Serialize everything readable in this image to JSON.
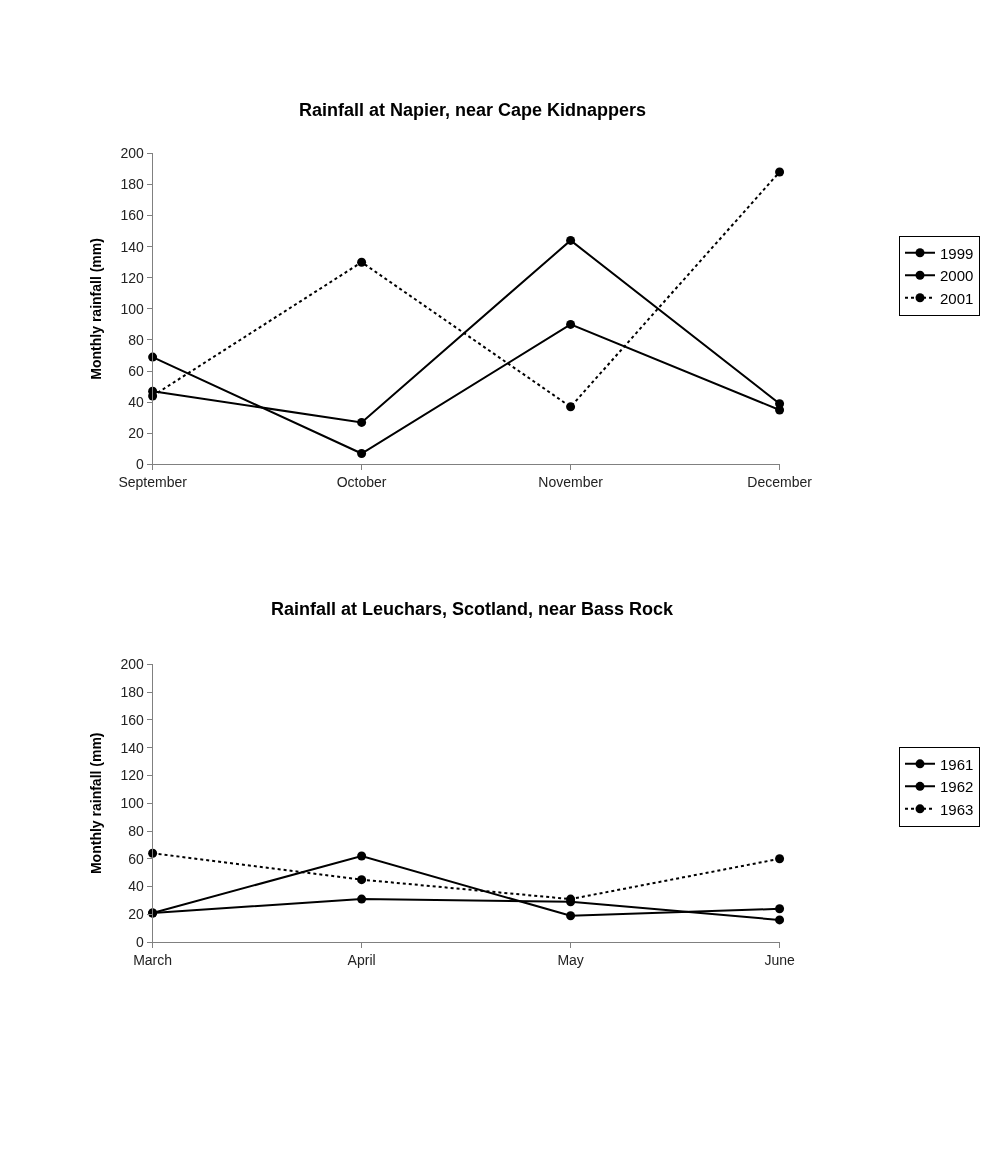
{
  "chart_data": [
    {
      "type": "line",
      "title": "Rainfall at Napier, near Cape Kidnappers",
      "ylabel": "Monthly rainfall (mm)",
      "categories": [
        "September",
        "October",
        "November",
        "December"
      ],
      "series": [
        {
          "name": "1999",
          "color": "#000000",
          "line_style": "solid",
          "values": [
            47,
            27,
            144,
            39
          ]
        },
        {
          "name": "2000",
          "color": "#000000",
          "line_style": "solid",
          "values": [
            69,
            7,
            90,
            35
          ]
        },
        {
          "name": "2001",
          "color": "#000000",
          "line_style": "dotted",
          "values": [
            44,
            130,
            37,
            188
          ]
        }
      ],
      "ylim": [
        0,
        200
      ],
      "yticks": [
        0,
        20,
        40,
        60,
        80,
        100,
        120,
        140,
        160,
        180,
        200
      ],
      "legend": "right",
      "marker": "circle"
    },
    {
      "type": "line",
      "title": "Rainfall at Leuchars, Scotland, near Bass Rock",
      "ylabel": "Monthly rainfall (mm)",
      "categories": [
        "March",
        "April",
        "May",
        "June"
      ],
      "series": [
        {
          "name": "1961",
          "color": "#000000",
          "line_style": "solid",
          "values": [
            21,
            62,
            19,
            24
          ]
        },
        {
          "name": "1962",
          "color": "#000000",
          "line_style": "solid",
          "values": [
            21,
            31,
            29,
            16
          ]
        },
        {
          "name": "1963",
          "color": "#000000",
          "line_style": "dotted",
          "values": [
            64,
            45,
            31,
            60
          ]
        }
      ],
      "ylim": [
        0,
        200
      ],
      "yticks": [
        0,
        20,
        40,
        60,
        80,
        100,
        120,
        140,
        160,
        180,
        200
      ],
      "legend": "right",
      "marker": "circle"
    }
  ]
}
